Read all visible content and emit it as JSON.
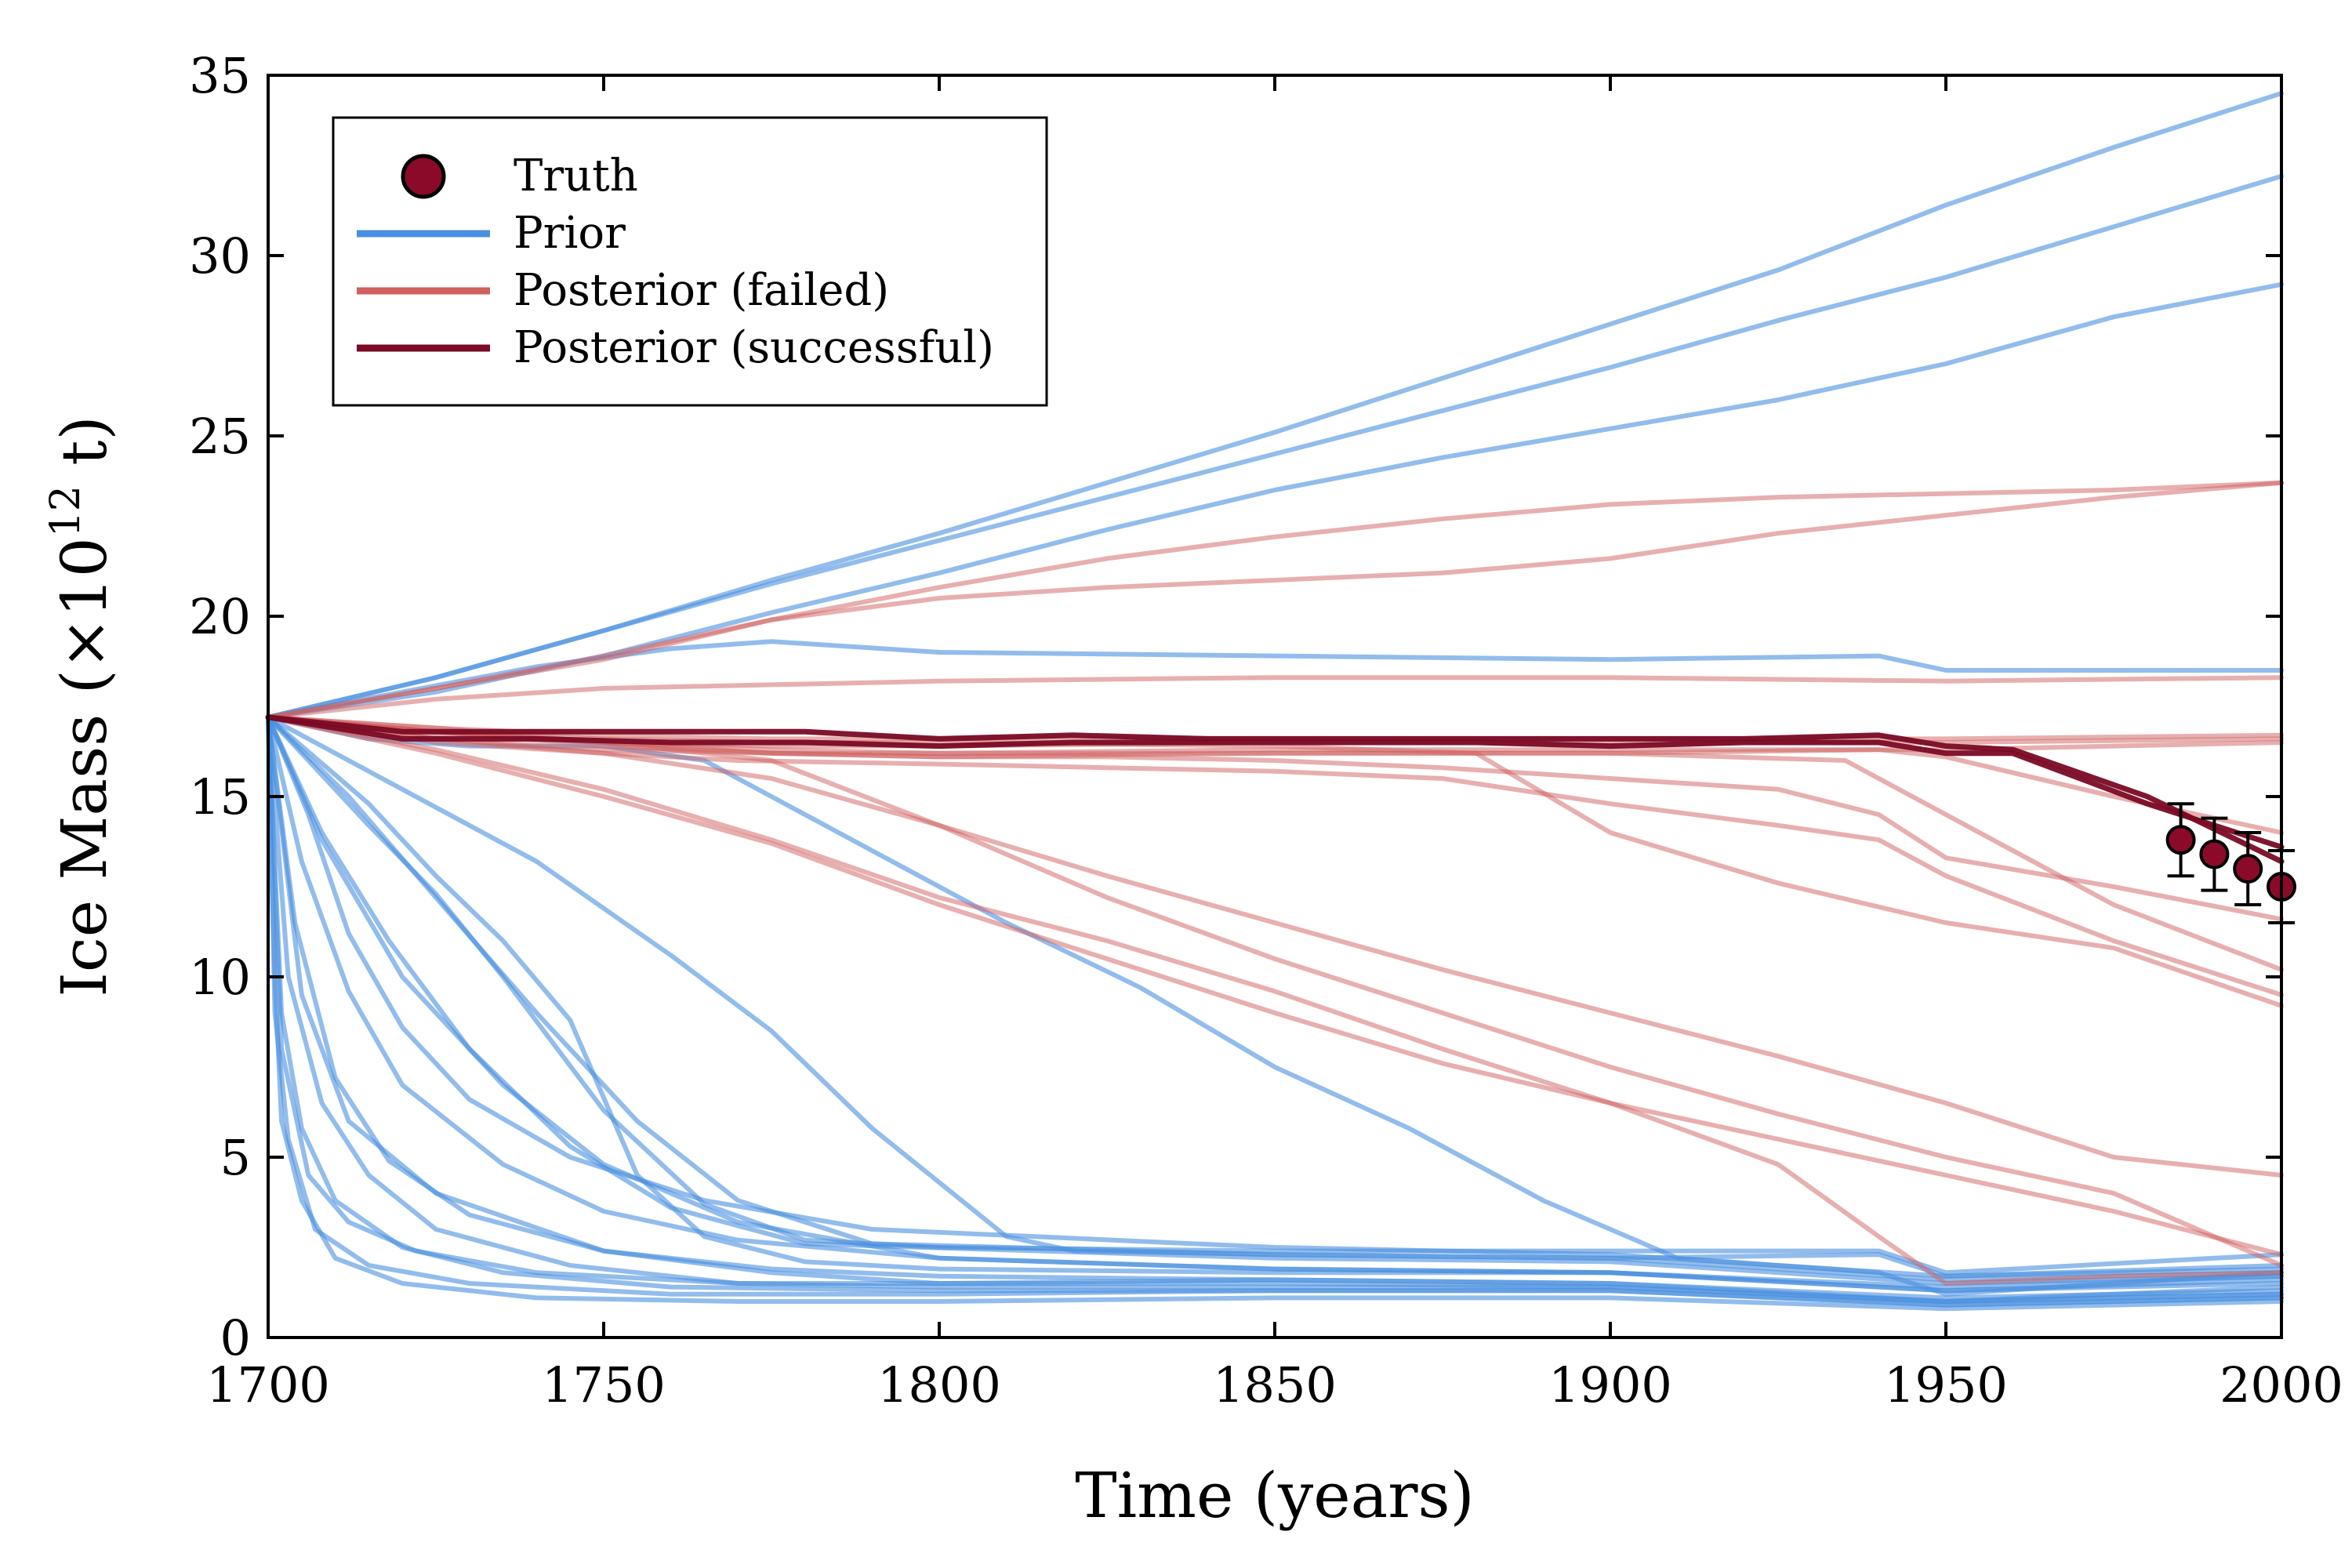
{
  "chart_data": {
    "type": "line",
    "title": "",
    "xlabel": "Time (years)",
    "ylabel_main": "Ice Mass (×10",
    "ylabel_exp": "12",
    "ylabel_tail": " t)",
    "xlim": [
      1700,
      2000
    ],
    "ylim": [
      0,
      35
    ],
    "xticks": [
      "1700",
      "1750",
      "1800",
      "1850",
      "1900",
      "1950",
      "2000"
    ],
    "yticks": [
      "0",
      "5",
      "10",
      "15",
      "20",
      "25",
      "30",
      "35"
    ],
    "grid": false,
    "legend_position": "top-left",
    "legend": [
      {
        "label": "Truth",
        "kind": "marker",
        "color": "#8b0a2a"
      },
      {
        "label": "Prior",
        "kind": "line",
        "color": "#4a8fe0"
      },
      {
        "label": "Posterior (failed)",
        "kind": "line",
        "color": "#d06060"
      },
      {
        "label": "Posterior (successful)",
        "kind": "line",
        "color": "#7a0a25"
      }
    ],
    "colors": {
      "prior": "#4a8fe0",
      "failed": "#d06060",
      "successful": "#7a0a25",
      "truth": "#8b0a2a"
    },
    "truth": [
      {
        "x": 1985,
        "y": 13.8,
        "err": 1.0
      },
      {
        "x": 1990,
        "y": 13.4,
        "err": 1.0
      },
      {
        "x": 1995,
        "y": 13.0,
        "err": 1.0
      },
      {
        "x": 2000,
        "y": 12.5,
        "err": 1.0
      }
    ],
    "series": [
      {
        "group": "prior",
        "x": [
          1700,
          1725,
          1750,
          1775,
          1800,
          1825,
          1850,
          1875,
          1900,
          1925,
          1950,
          1975,
          2000
        ],
        "y": [
          17.2,
          18.3,
          19.6,
          20.9,
          22.1,
          23.3,
          24.5,
          25.7,
          26.9,
          28.2,
          29.4,
          30.8,
          32.2
        ]
      },
      {
        "group": "prior",
        "x": [
          1700,
          1725,
          1750,
          1775,
          1800,
          1825,
          1850,
          1875,
          1900,
          1925,
          1950,
          1975,
          2000
        ],
        "y": [
          17.2,
          18.3,
          19.6,
          21.0,
          22.3,
          23.7,
          25.1,
          26.6,
          28.1,
          29.6,
          31.4,
          33.0,
          34.5
        ]
      },
      {
        "group": "prior",
        "x": [
          1700,
          1725,
          1750,
          1775,
          1800,
          1825,
          1850,
          1875,
          1900,
          1925,
          1950,
          1975,
          2000
        ],
        "y": [
          17.2,
          17.9,
          18.9,
          20.1,
          21.2,
          22.4,
          23.5,
          24.4,
          25.2,
          26.0,
          27.0,
          28.3,
          29.2
        ]
      },
      {
        "group": "prior",
        "x": [
          1700,
          1720,
          1740,
          1760,
          1775,
          1800,
          1850,
          1900,
          1940,
          1950,
          2000
        ],
        "y": [
          17.2,
          17.9,
          18.6,
          19.1,
          19.3,
          19.0,
          18.9,
          18.8,
          18.9,
          18.5,
          18.5
        ]
      },
      {
        "group": "prior",
        "x": [
          1700,
          1715,
          1730,
          1750,
          1765,
          1775,
          1790,
          1810,
          1830,
          1850,
          1870,
          1890,
          1910,
          1940,
          1950,
          1975,
          2000
        ],
        "y": [
          17.2,
          16.6,
          16.4,
          16.4,
          16.0,
          15.0,
          13.5,
          11.5,
          9.7,
          7.5,
          5.8,
          3.8,
          2.2,
          1.8,
          1.2,
          1.5,
          1.8
        ]
      },
      {
        "group": "prior",
        "x": [
          1700,
          1720,
          1740,
          1760,
          1775,
          1790,
          1810,
          1820,
          1850,
          1900,
          1940,
          1950,
          2000
        ],
        "y": [
          17.2,
          15.2,
          13.2,
          10.6,
          8.5,
          5.8,
          2.8,
          2.4,
          2.3,
          2.2,
          2.3,
          1.7,
          1.9
        ]
      },
      {
        "group": "prior",
        "x": [
          1700,
          1715,
          1725,
          1735,
          1750,
          1765,
          1780,
          1800,
          1850,
          1900,
          1940,
          1950,
          2000
        ],
        "y": [
          17.2,
          14.2,
          12.3,
          10.0,
          6.3,
          3.7,
          2.7,
          2.5,
          2.4,
          2.4,
          2.4,
          1.8,
          2.3
        ]
      },
      {
        "group": "prior",
        "x": [
          1700,
          1715,
          1725,
          1735,
          1745,
          1755,
          1765,
          1780,
          1800,
          1850,
          1900,
          1950,
          2000
        ],
        "y": [
          17.2,
          14.8,
          12.8,
          11.0,
          8.8,
          4.5,
          2.8,
          2.1,
          1.9,
          1.8,
          1.8,
          1.4,
          1.7
        ]
      },
      {
        "group": "prior",
        "x": [
          1700,
          1712,
          1725,
          1740,
          1755,
          1770,
          1790,
          1850,
          1900,
          1950,
          2000
        ],
        "y": [
          17.2,
          15.0,
          12.2,
          9.0,
          6.0,
          3.8,
          2.6,
          2.3,
          2.2,
          1.6,
          1.8
        ]
      },
      {
        "group": "prior",
        "x": [
          1700,
          1708,
          1718,
          1730,
          1745,
          1760,
          1780,
          1850,
          1900,
          1950,
          2000
        ],
        "y": [
          17.2,
          14.0,
          11.0,
          8.0,
          5.3,
          3.6,
          2.6,
          2.2,
          2.1,
          1.5,
          1.7
        ]
      },
      {
        "group": "prior",
        "x": [
          1700,
          1706,
          1712,
          1720,
          1730,
          1745,
          1765,
          1790,
          1850,
          1900,
          1950,
          2000
        ],
        "y": [
          17.2,
          14.5,
          11.2,
          8.6,
          6.6,
          5.0,
          3.8,
          3.0,
          2.5,
          2.3,
          1.7,
          2.0
        ]
      },
      {
        "group": "prior",
        "x": [
          1700,
          1705,
          1712,
          1720,
          1735,
          1750,
          1770,
          1800,
          1850,
          1900,
          1950,
          2000
        ],
        "y": [
          17.2,
          13.2,
          9.6,
          7.0,
          4.8,
          3.5,
          2.7,
          2.2,
          1.9,
          1.8,
          1.3,
          1.5
        ]
      },
      {
        "group": "prior",
        "x": [
          1700,
          1704,
          1710,
          1718,
          1730,
          1750,
          1775,
          1800,
          1850,
          1900,
          1950,
          2000
        ],
        "y": [
          17.2,
          11.5,
          7.2,
          4.9,
          3.4,
          2.4,
          1.9,
          1.7,
          1.6,
          1.5,
          1.1,
          1.3
        ]
      },
      {
        "group": "prior",
        "x": [
          1700,
          1703,
          1708,
          1715,
          1725,
          1745,
          1770,
          1800,
          1850,
          1900,
          1950,
          2000
        ],
        "y": [
          17.2,
          10.0,
          6.5,
          4.5,
          3.0,
          2.0,
          1.5,
          1.4,
          1.4,
          1.4,
          1.0,
          1.2
        ]
      },
      {
        "group": "prior",
        "x": [
          1700,
          1705,
          1712,
          1725,
          1750,
          1775,
          1800,
          1850,
          1900,
          1950,
          2000
        ],
        "y": [
          17.2,
          9.5,
          6.0,
          4.0,
          2.4,
          1.8,
          1.5,
          1.5,
          1.4,
          1.0,
          1.2
        ]
      },
      {
        "group": "prior",
        "x": [
          1700,
          1702,
          1705,
          1710,
          1720,
          1735,
          1760,
          1800,
          1850,
          1900,
          1950,
          2000
        ],
        "y": [
          17.2,
          9.0,
          5.8,
          3.8,
          2.5,
          1.8,
          1.4,
          1.3,
          1.3,
          1.3,
          0.9,
          1.1
        ]
      },
      {
        "group": "prior",
        "x": [
          1700,
          1702,
          1706,
          1712,
          1722,
          1740,
          1770,
          1800,
          1850,
          1900,
          1950,
          2000
        ],
        "y": [
          17.2,
          8.0,
          4.5,
          3.2,
          2.4,
          1.8,
          1.5,
          1.5,
          1.6,
          1.5,
          1.0,
          1.4
        ]
      },
      {
        "group": "prior",
        "x": [
          1700,
          1701,
          1703,
          1707,
          1715,
          1730,
          1760,
          1800,
          1850,
          1900,
          1950,
          2000
        ],
        "y": [
          17.2,
          9.0,
          5.5,
          3.0,
          2.0,
          1.5,
          1.2,
          1.2,
          1.3,
          1.3,
          0.9,
          1.1
        ]
      },
      {
        "group": "prior",
        "x": [
          1700,
          1701,
          1702,
          1705,
          1710,
          1720,
          1740,
          1770,
          1800,
          1850,
          1900,
          1950,
          2000
        ],
        "y": [
          17.2,
          10.0,
          6.0,
          3.8,
          2.2,
          1.5,
          1.1,
          1.0,
          1.0,
          1.1,
          1.1,
          0.8,
          1.0
        ]
      },
      {
        "group": "prior",
        "x": [
          1700,
          1708,
          1720,
          1735,
          1750,
          1770,
          1800,
          1850,
          1900,
          1950,
          2000
        ],
        "y": [
          17.2,
          13.8,
          10.0,
          7.0,
          4.8,
          3.2,
          2.2,
          1.9,
          1.8,
          1.3,
          1.6
        ]
      },
      {
        "group": "failed",
        "x": [
          1700,
          1725,
          1750,
          1775,
          1800,
          1825,
          1850,
          1875,
          1900,
          1925,
          1950,
          1975,
          2000
        ],
        "y": [
          17.2,
          18.0,
          18.9,
          19.9,
          20.5,
          20.8,
          21.0,
          21.2,
          21.6,
          22.3,
          22.8,
          23.3,
          23.7
        ]
      },
      {
        "group": "failed",
        "x": [
          1700,
          1725,
          1750,
          1775,
          1800,
          1825,
          1850,
          1875,
          1900,
          1925,
          1950,
          1975,
          2000
        ],
        "y": [
          17.2,
          18.0,
          18.8,
          19.9,
          20.8,
          21.6,
          22.2,
          22.7,
          23.1,
          23.3,
          23.4,
          23.5,
          23.7
        ]
      },
      {
        "group": "failed",
        "x": [
          1700,
          1725,
          1750,
          1775,
          1800,
          1850,
          1900,
          1950,
          2000
        ],
        "y": [
          17.2,
          17.7,
          18.0,
          18.1,
          18.2,
          18.3,
          18.3,
          18.2,
          18.3
        ]
      },
      {
        "group": "failed",
        "x": [
          1700,
          1725,
          1750,
          1775,
          1800,
          1850,
          1900,
          1950,
          2000
        ],
        "y": [
          17.2,
          16.9,
          16.7,
          16.6,
          16.6,
          16.6,
          16.6,
          16.6,
          16.7
        ]
      },
      {
        "group": "failed",
        "x": [
          1700,
          1725,
          1750,
          1775,
          1800,
          1850,
          1900,
          1950,
          2000
        ],
        "y": [
          17.2,
          16.7,
          16.5,
          16.4,
          16.4,
          16.5,
          16.5,
          16.5,
          16.6
        ]
      },
      {
        "group": "failed",
        "x": [
          1700,
          1725,
          1750,
          1775,
          1800,
          1850,
          1900,
          1950,
          2000
        ],
        "y": [
          17.2,
          16.6,
          16.3,
          16.2,
          16.2,
          16.3,
          16.3,
          16.3,
          16.5
        ]
      },
      {
        "group": "failed",
        "x": [
          1700,
          1725,
          1750,
          1775,
          1800,
          1850,
          1900,
          1940,
          1950,
          1975,
          2000
        ],
        "y": [
          17.2,
          16.8,
          16.5,
          16.2,
          16.1,
          16.2,
          16.2,
          16.3,
          16.1,
          15.0,
          14.0
        ]
      },
      {
        "group": "failed",
        "x": [
          1700,
          1725,
          1750,
          1775,
          1800,
          1850,
          1900,
          1935,
          1950,
          1975,
          2000
        ],
        "y": [
          17.2,
          16.8,
          16.5,
          16.3,
          16.2,
          16.2,
          16.2,
          16.0,
          14.5,
          12.0,
          10.2
        ]
      },
      {
        "group": "failed",
        "x": [
          1700,
          1725,
          1750,
          1775,
          1800,
          1850,
          1880,
          1900,
          1925,
          1950,
          1975,
          2000
        ],
        "y": [
          17.2,
          16.8,
          16.6,
          16.5,
          16.5,
          16.4,
          16.2,
          14.0,
          12.6,
          11.5,
          10.8,
          9.2
        ]
      },
      {
        "group": "failed",
        "x": [
          1700,
          1725,
          1750,
          1775,
          1800,
          1825,
          1850,
          1875,
          1900,
          1925,
          1950,
          1975,
          2000
        ],
        "y": [
          17.2,
          16.2,
          15.0,
          13.7,
          12.0,
          10.5,
          9.0,
          7.6,
          6.5,
          5.5,
          4.5,
          3.5,
          2.3
        ]
      },
      {
        "group": "failed",
        "x": [
          1700,
          1725,
          1750,
          1770,
          1800,
          1825,
          1850,
          1875,
          1900,
          1925,
          1940,
          1950,
          1975,
          2000
        ],
        "y": [
          17.2,
          16.5,
          16.2,
          16.0,
          15.9,
          15.8,
          15.7,
          15.5,
          14.8,
          14.2,
          13.8,
          12.8,
          11.0,
          9.5
        ]
      },
      {
        "group": "failed",
        "x": [
          1700,
          1725,
          1750,
          1775,
          1800,
          1825,
          1850,
          1875,
          1900,
          1925,
          1940,
          1950,
          1975,
          2000
        ],
        "y": [
          17.2,
          16.3,
          15.2,
          13.8,
          12.2,
          11.0,
          9.6,
          8.0,
          6.5,
          4.8,
          2.8,
          1.5,
          1.7,
          1.8
        ]
      },
      {
        "group": "failed",
        "x": [
          1700,
          1725,
          1750,
          1775,
          1800,
          1825,
          1850,
          1875,
          1900,
          1925,
          1950,
          1975,
          2000
        ],
        "y": [
          17.2,
          16.9,
          16.5,
          16.0,
          14.2,
          12.2,
          10.5,
          9.0,
          7.5,
          6.2,
          5.0,
          4.0,
          2.0
        ]
      },
      {
        "group": "failed",
        "x": [
          1700,
          1725,
          1750,
          1775,
          1800,
          1825,
          1850,
          1875,
          1900,
          1925,
          1940,
          1950,
          1975,
          2000
        ],
        "y": [
          17.2,
          16.8,
          16.4,
          16.2,
          16.1,
          16.1,
          16.0,
          15.8,
          15.5,
          15.2,
          14.5,
          13.3,
          12.5,
          11.6
        ]
      },
      {
        "group": "failed",
        "x": [
          1700,
          1725,
          1750,
          1775,
          1800,
          1825,
          1850,
          1875,
          1900,
          1925,
          1950,
          1975,
          2000
        ],
        "y": [
          17.2,
          16.6,
          16.2,
          15.5,
          14.2,
          12.8,
          11.5,
          10.2,
          9.0,
          7.8,
          6.5,
          5.0,
          4.5
        ]
      },
      {
        "group": "successful",
        "x": [
          1700,
          1720,
          1740,
          1760,
          1780,
          1800,
          1820,
          1840,
          1860,
          1880,
          1900,
          1920,
          1940,
          1950,
          1960,
          1980,
          2000
        ],
        "y": [
          17.2,
          16.8,
          16.8,
          16.8,
          16.8,
          16.6,
          16.7,
          16.6,
          16.6,
          16.6,
          16.6,
          16.6,
          16.7,
          16.4,
          16.3,
          15.0,
          13.2
        ]
      },
      {
        "group": "successful",
        "x": [
          1700,
          1720,
          1740,
          1760,
          1780,
          1800,
          1820,
          1840,
          1860,
          1880,
          1900,
          1920,
          1940,
          1950,
          1960,
          1980,
          2000
        ],
        "y": [
          17.2,
          16.6,
          16.6,
          16.5,
          16.5,
          16.4,
          16.5,
          16.5,
          16.5,
          16.5,
          16.4,
          16.5,
          16.5,
          16.2,
          16.2,
          14.8,
          13.6
        ]
      }
    ]
  }
}
